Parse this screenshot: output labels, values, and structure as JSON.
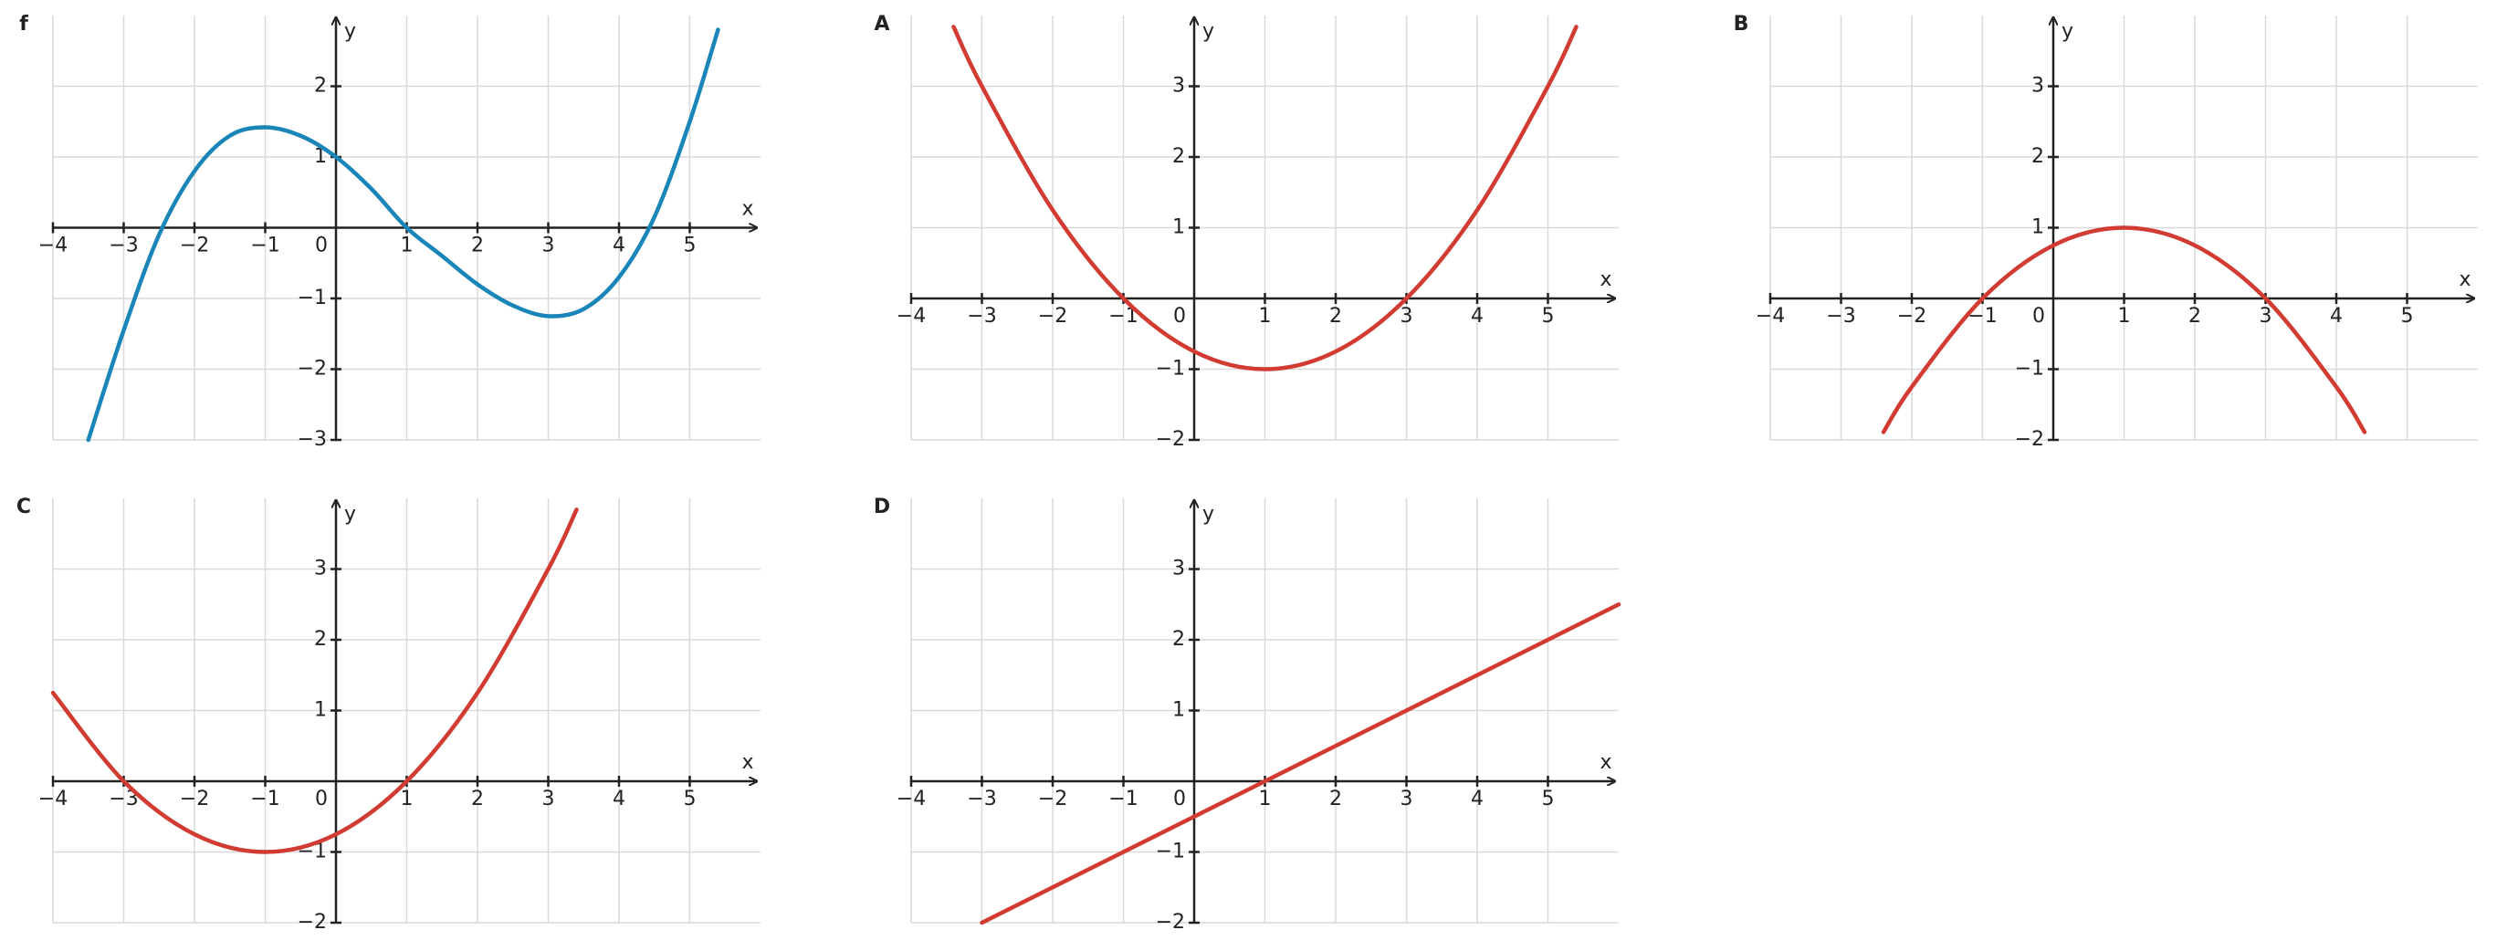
{
  "chart_data": [
    {
      "type": "line",
      "title": "f",
      "x_label": "x",
      "y_label": "y",
      "color": "#1a85b8",
      "grid": true,
      "x": [
        -3.5,
        -3,
        -2.5,
        -2,
        -1.5,
        -1,
        -0.5,
        0,
        0.5,
        1,
        1.5,
        2,
        2.5,
        3,
        3.5,
        4,
        4.5,
        5,
        5.4
      ],
      "values": [
        -3.0,
        -1.45,
        -0.1,
        0.8,
        1.3,
        1.42,
        1.3,
        1.0,
        0.55,
        0,
        -0.4,
        -0.8,
        -1.1,
        -1.25,
        -1.15,
        -0.7,
        0.15,
        1.5,
        2.8
      ],
      "xlim": [
        -4,
        6
      ],
      "ylim": [
        -3,
        3
      ],
      "xticks": [
        {
          "value": -4,
          "label": "−4"
        },
        {
          "value": -3,
          "label": "−3"
        },
        {
          "value": -2,
          "label": "−2"
        },
        {
          "value": -1,
          "label": "−1"
        },
        0,
        1,
        2,
        3,
        4,
        5
      ],
      "yticks": [
        {
          "value": -3,
          "label": "−3"
        },
        {
          "value": -2,
          "label": "−2"
        },
        {
          "value": -1,
          "label": "−1"
        },
        1,
        2
      ]
    },
    {
      "type": "line",
      "title": "A",
      "x_label": "x",
      "y_label": "y",
      "color": "#d13b32",
      "grid": true,
      "x": [
        -3.4,
        -3,
        -2,
        -1,
        0,
        1,
        2,
        3,
        4,
        5,
        5.4
      ],
      "values": [
        3.84,
        3,
        1.25,
        0,
        -0.75,
        -1,
        -0.75,
        0,
        1.25,
        3,
        3.84
      ],
      "xlim": [
        -4,
        6
      ],
      "ylim": [
        -2,
        4
      ],
      "xticks": [
        {
          "value": -4,
          "label": "−4"
        },
        {
          "value": -3,
          "label": "−3"
        },
        {
          "value": -2,
          "label": "−2"
        },
        {
          "value": -1,
          "label": "−1"
        },
        0,
        1,
        2,
        3,
        4,
        5
      ],
      "yticks": [
        {
          "value": -2,
          "label": "−2"
        },
        {
          "value": -1,
          "label": "−1"
        },
        1,
        2,
        3
      ]
    },
    {
      "type": "line",
      "title": "B",
      "x_label": "x",
      "y_label": "y",
      "color": "#d13b32",
      "grid": true,
      "x": [
        -2.4,
        -2,
        -1,
        0,
        1,
        2,
        3,
        4,
        4.4
      ],
      "values": [
        -1.89,
        -1.25,
        0,
        0.75,
        1,
        0.75,
        0,
        -1.25,
        -1.89
      ],
      "xlim": [
        -4,
        6
      ],
      "ylim": [
        -2,
        4
      ],
      "xticks": [
        {
          "value": -4,
          "label": "−4"
        },
        {
          "value": -3,
          "label": "−3"
        },
        {
          "value": -2,
          "label": "−2"
        },
        {
          "value": -1,
          "label": "−1"
        },
        0,
        1,
        2,
        3,
        4,
        5
      ],
      "yticks": [
        {
          "value": -2,
          "label": "−2"
        },
        {
          "value": -1,
          "label": "−1"
        },
        1,
        2,
        3
      ]
    },
    {
      "type": "line",
      "title": "C",
      "x_label": "x",
      "y_label": "y",
      "color": "#d13b32",
      "grid": true,
      "x": [
        -4,
        -3,
        -2,
        -1,
        0,
        1,
        2,
        3,
        3.4
      ],
      "values": [
        1.25,
        0,
        -0.75,
        -1,
        -0.75,
        0,
        1.25,
        3,
        3.84
      ],
      "xlim": [
        -4,
        6
      ],
      "ylim": [
        -2,
        4
      ],
      "xticks": [
        {
          "value": -4,
          "label": "−4"
        },
        {
          "value": -3,
          "label": "−3"
        },
        {
          "value": -2,
          "label": "−2"
        },
        {
          "value": -1,
          "label": "−1"
        },
        0,
        1,
        2,
        3,
        4,
        5
      ],
      "yticks": [
        {
          "value": -2,
          "label": "−2"
        },
        {
          "value": -1,
          "label": "−1"
        },
        1,
        2,
        3
      ]
    },
    {
      "type": "line",
      "title": "D",
      "x_label": "x",
      "y_label": "y",
      "color": "#d13b32",
      "grid": true,
      "x": [
        -3,
        6
      ],
      "values": [
        -2,
        2.5
      ],
      "xlim": [
        -4,
        6
      ],
      "ylim": [
        -2,
        4
      ],
      "xticks": [
        {
          "value": -4,
          "label": "−4"
        },
        {
          "value": -3,
          "label": "−3"
        },
        {
          "value": -2,
          "label": "−2"
        },
        {
          "value": -1,
          "label": "−1"
        },
        0,
        1,
        2,
        3,
        4,
        5
      ],
      "yticks": [
        {
          "value": -2,
          "label": "−2"
        },
        {
          "value": -1,
          "label": "−1"
        },
        1,
        2,
        3
      ]
    }
  ]
}
